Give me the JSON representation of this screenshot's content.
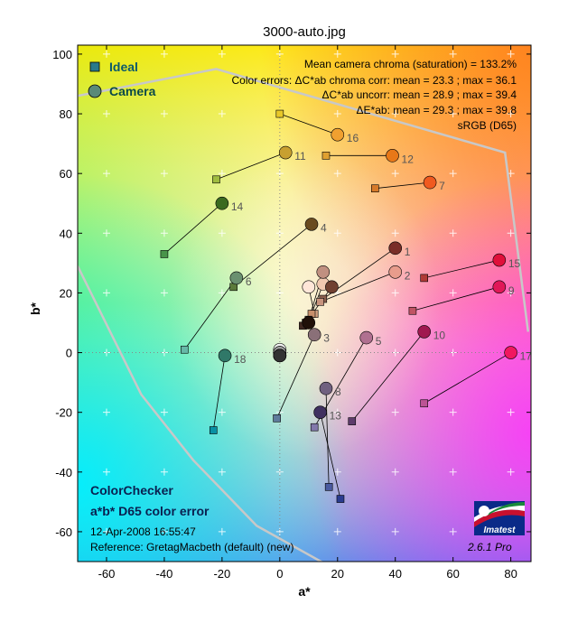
{
  "chart_data": {
    "type": "scatter",
    "title": "3000-auto.jpg",
    "xlabel": "a*",
    "ylabel": "b*",
    "xlim": [
      -70,
      87
    ],
    "ylim": [
      -70,
      103
    ],
    "xticks": [
      -60,
      -40,
      -20,
      0,
      20,
      40,
      60,
      80
    ],
    "yticks": [
      -60,
      -40,
      -20,
      0,
      20,
      40,
      60,
      80,
      100
    ],
    "grid": "plus markers",
    "legend": {
      "position": "top-left",
      "ideal_label": "Ideal",
      "camera_label": "Camera"
    },
    "stats": [
      "Mean camera chroma (saturation) = 133.2%",
      "Color errors: ΔC*ab chroma corr:  mean = 23.3 ;   max = 36.1",
      "ΔC*ab uncorr:  mean = 28.9 ;   max = 39.4",
      "ΔE*ab:  mean = 29.3 ;   max = 39.8",
      "sRGB (D65)"
    ],
    "footer": {
      "line1": "ColorChecker",
      "line2": "a*b* D65 color error",
      "line3": "12-Apr-2008 16:55:47",
      "line4": "Reference: GretagMacbeth (default) (new)",
      "version": "2.6.1  Pro",
      "logo_text": "Imatest"
    },
    "gamut_line": [
      [
        -70,
        29
      ],
      [
        -48,
        -14
      ],
      [
        -30,
        -36
      ],
      [
        -8,
        -58
      ],
      [
        18,
        -72
      ]
    ],
    "sRGB_boundary": [
      [
        -70,
        86
      ],
      [
        -22,
        95
      ],
      [
        78,
        67
      ],
      [
        86,
        7
      ]
    ],
    "patches": [
      {
        "id": "1",
        "ideal": [
          15,
          18
        ],
        "camera": [
          40,
          35
        ],
        "ideal_color": "#8a5f4e",
        "camera_color": "#7a2e28"
      },
      {
        "id": "2",
        "ideal": [
          14,
          17
        ],
        "camera": [
          40,
          27
        ],
        "ideal_color": "#c8947e",
        "camera_color": "#e89c8c"
      },
      {
        "id": "3",
        "ideal": [
          -1,
          -22
        ],
        "camera": [
          12,
          6
        ],
        "ideal_color": "#5f7b9c",
        "camera_color": "#8a7078"
      },
      {
        "id": "4",
        "ideal": [
          -16,
          22
        ],
        "camera": [
          11,
          43
        ],
        "ideal_color": "#5b7a3a",
        "camera_color": "#6a4b20"
      },
      {
        "id": "5",
        "ideal": [
          12,
          -25
        ],
        "camera": [
          30,
          5
        ],
        "ideal_color": "#8278aa",
        "camera_color": "#b07090"
      },
      {
        "id": "6",
        "ideal": [
          -33,
          1
        ],
        "camera": [
          -15,
          25
        ],
        "ideal_color": "#66b8a8",
        "camera_color": "#6a9070"
      },
      {
        "id": "7",
        "ideal": [
          33,
          55
        ],
        "camera": [
          52,
          57
        ],
        "ideal_color": "#d67a2a",
        "camera_color": "#f05a20"
      },
      {
        "id": "8",
        "ideal": [
          17,
          -45
        ],
        "camera": [
          16,
          -12
        ],
        "ideal_color": "#4a5aa0",
        "camera_color": "#706080"
      },
      {
        "id": "9",
        "ideal": [
          46,
          14
        ],
        "camera": [
          76,
          22
        ],
        "ideal_color": "#c05464",
        "camera_color": "#e01858"
      },
      {
        "id": "10",
        "ideal": [
          25,
          -23
        ],
        "camera": [
          50,
          7
        ],
        "ideal_color": "#5e3c6c",
        "camera_color": "#a01850"
      },
      {
        "id": "11",
        "ideal": [
          -22,
          58
        ],
        "camera": [
          2,
          67
        ],
        "ideal_color": "#a0bc40",
        "camera_color": "#c8a030"
      },
      {
        "id": "12",
        "ideal": [
          16,
          66
        ],
        "camera": [
          39,
          66
        ],
        "ideal_color": "#e0a030",
        "camera_color": "#e87818"
      },
      {
        "id": "13",
        "ideal": [
          21,
          -49
        ],
        "camera": [
          14,
          -20
        ],
        "ideal_color": "#2a3c90",
        "camera_color": "#403060"
      },
      {
        "id": "14",
        "ideal": [
          -40,
          33
        ],
        "camera": [
          -20,
          50
        ],
        "ideal_color": "#48944a",
        "camera_color": "#3a6a20"
      },
      {
        "id": "15",
        "ideal": [
          50,
          25
        ],
        "camera": [
          76,
          31
        ],
        "ideal_color": "#b03a36",
        "camera_color": "#e0103a"
      },
      {
        "id": "16",
        "ideal": [
          0,
          80
        ],
        "camera": [
          20,
          73
        ],
        "ideal_color": "#e8c828",
        "camera_color": "#f0a030"
      },
      {
        "id": "17",
        "ideal": [
          50,
          -17
        ],
        "camera": [
          80,
          0
        ],
        "ideal_color": "#bc5494",
        "camera_color": "#f01860"
      },
      {
        "id": "18",
        "ideal": [
          -23,
          -26
        ],
        "camera": [
          -19,
          -1
        ],
        "ideal_color": "#0890a4",
        "camera_color": "#307868"
      },
      {
        "id": "",
        "ideal": [
          0,
          1
        ],
        "camera": [
          0,
          1
        ],
        "ideal_color": "#f2f2f2",
        "camera_color": "#f2f2f2"
      },
      {
        "id": "",
        "ideal": [
          0,
          0
        ],
        "camera": [
          0,
          0
        ],
        "ideal_color": "#c8c8c8",
        "camera_color": "#c8c8c8"
      },
      {
        "id": "",
        "ideal": [
          0,
          0
        ],
        "camera": [
          0,
          0
        ],
        "ideal_color": "#a0a0a0",
        "camera_color": "#a0a0a0"
      },
      {
        "id": "",
        "ideal": [
          0,
          -1
        ],
        "camera": [
          0,
          -1
        ],
        "ideal_color": "#7a7a7a",
        "camera_color": "#7a7a7a"
      },
      {
        "id": "",
        "ideal": [
          0,
          -1
        ],
        "camera": [
          0,
          -1
        ],
        "ideal_color": "#555555",
        "camera_color": "#555555"
      },
      {
        "id": "",
        "ideal": [
          0,
          -1
        ],
        "camera": [
          0,
          -1
        ],
        "ideal_color": "#333333",
        "camera_color": "#333333"
      },
      {
        "id": "",
        "ideal": [
          12,
          13
        ],
        "camera": [
          10,
          22
        ],
        "ideal_color": "#d0a080",
        "camera_color": "#ffe6d8"
      },
      {
        "id": "",
        "ideal": [
          11,
          13
        ],
        "camera": [
          15,
          23
        ],
        "ideal_color": "#c8906c",
        "camera_color": "#f0c8b0"
      },
      {
        "id": "",
        "ideal": [
          10,
          11
        ],
        "camera": [
          15,
          27
        ],
        "ideal_color": "#704838",
        "camera_color": "#c09080"
      },
      {
        "id": "",
        "ideal": [
          9,
          10
        ],
        "camera": [
          18,
          22
        ],
        "ideal_color": "#603a30",
        "camera_color": "#704030"
      },
      {
        "id": "",
        "ideal": [
          8,
          9
        ],
        "camera": [
          10,
          10
        ],
        "ideal_color": "#402820",
        "camera_color": "#201008"
      }
    ]
  }
}
